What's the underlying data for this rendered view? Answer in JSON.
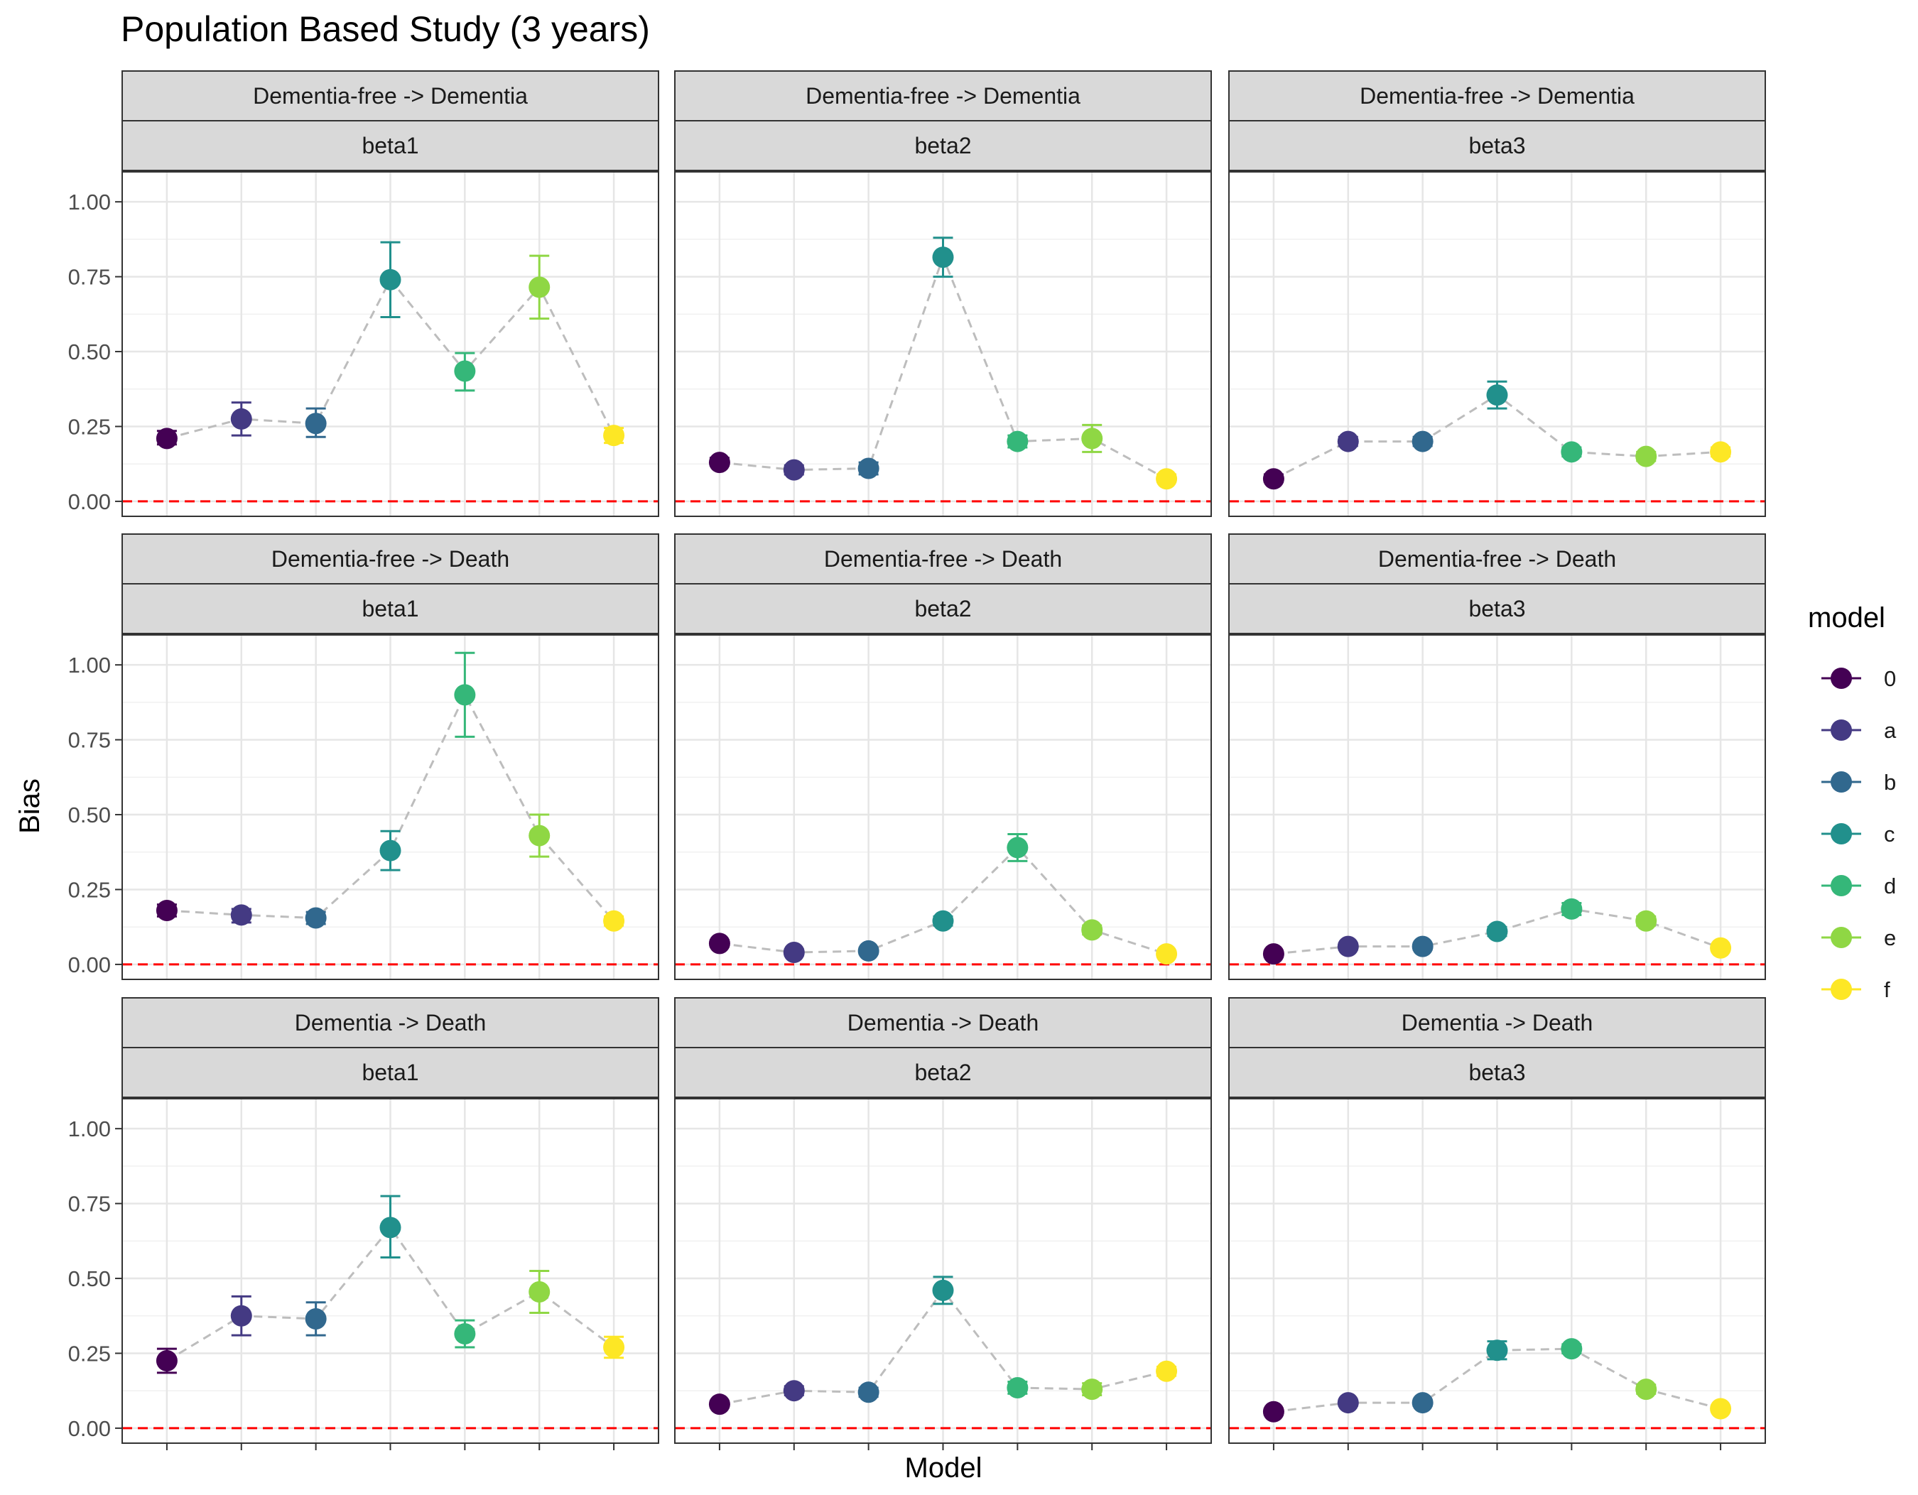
{
  "chart_data": {
    "type": "scatter",
    "title": "Population Based Study (3 years)",
    "xlabel": "Model",
    "ylabel": "Bias",
    "ylim": [
      -0.05,
      1.1
    ],
    "yticks": [
      0,
      0.25,
      0.5,
      0.75,
      1.0
    ],
    "ytick_labels": [
      "0.00",
      "0.25",
      "0.50",
      "0.75",
      "1.00"
    ],
    "categories": [
      "0",
      "a",
      "b",
      "c",
      "d",
      "e",
      "f"
    ],
    "reference_line": {
      "y": 0,
      "color": "#ff0000",
      "style": "dashed"
    },
    "connector": {
      "color": "#bdbdbd",
      "style": "dashed"
    },
    "grid": true,
    "legend": {
      "title": "model",
      "position": "right",
      "entries": [
        {
          "label": "0",
          "color": "#440154"
        },
        {
          "label": "a",
          "color": "#443a83"
        },
        {
          "label": "b",
          "color": "#31688e"
        },
        {
          "label": "c",
          "color": "#21908c"
        },
        {
          "label": "d",
          "color": "#35b779"
        },
        {
          "label": "e",
          "color": "#8fd744"
        },
        {
          "label": "f",
          "color": "#fde725"
        }
      ]
    },
    "panels": [
      {
        "transition": "Dementia-free -> Dementia",
        "parameter": "beta1",
        "values": [
          0.21,
          0.275,
          0.26,
          0.74,
          0.435,
          0.715,
          0.22
        ],
        "lower": [
          0.19,
          0.22,
          0.215,
          0.615,
          0.37,
          0.61,
          0.195
        ],
        "upper": [
          0.235,
          0.33,
          0.31,
          0.865,
          0.495,
          0.82,
          0.245
        ]
      },
      {
        "transition": "Dementia-free -> Dementia",
        "parameter": "beta2",
        "values": [
          0.13,
          0.105,
          0.11,
          0.815,
          0.2,
          0.21,
          0.075
        ],
        "lower": [
          0.12,
          0.09,
          0.09,
          0.75,
          0.18,
          0.165,
          0.065
        ],
        "upper": [
          0.145,
          0.12,
          0.13,
          0.88,
          0.22,
          0.255,
          0.09
        ]
      },
      {
        "transition": "Dementia-free -> Dementia",
        "parameter": "beta3",
        "values": [
          0.075,
          0.2,
          0.2,
          0.355,
          0.165,
          0.15,
          0.165
        ],
        "lower": [
          0.065,
          0.185,
          0.185,
          0.31,
          0.15,
          0.135,
          0.15
        ],
        "upper": [
          0.09,
          0.215,
          0.215,
          0.4,
          0.18,
          0.165,
          0.18
        ]
      },
      {
        "transition": "Dementia-free -> Death",
        "parameter": "beta1",
        "values": [
          0.18,
          0.165,
          0.155,
          0.38,
          0.9,
          0.43,
          0.145
        ],
        "lower": [
          0.16,
          0.14,
          0.135,
          0.315,
          0.76,
          0.36,
          0.13
        ],
        "upper": [
          0.2,
          0.185,
          0.175,
          0.445,
          1.04,
          0.5,
          0.16
        ]
      },
      {
        "transition": "Dementia-free -> Death",
        "parameter": "beta2",
        "values": [
          0.07,
          0.04,
          0.045,
          0.145,
          0.39,
          0.115,
          0.035
        ],
        "lower": [
          0.06,
          0.03,
          0.035,
          0.13,
          0.345,
          0.1,
          0.025
        ],
        "upper": [
          0.08,
          0.05,
          0.055,
          0.16,
          0.435,
          0.13,
          0.045
        ]
      },
      {
        "transition": "Dementia-free -> Death",
        "parameter": "beta3",
        "values": [
          0.035,
          0.06,
          0.06,
          0.11,
          0.185,
          0.145,
          0.055
        ],
        "lower": [
          0.025,
          0.05,
          0.05,
          0.095,
          0.165,
          0.13,
          0.045
        ],
        "upper": [
          0.045,
          0.07,
          0.07,
          0.125,
          0.205,
          0.16,
          0.065
        ]
      },
      {
        "transition": "Dementia -> Death",
        "parameter": "beta1",
        "values": [
          0.225,
          0.375,
          0.365,
          0.67,
          0.315,
          0.455,
          0.27
        ],
        "lower": [
          0.185,
          0.31,
          0.31,
          0.57,
          0.27,
          0.385,
          0.235
        ],
        "upper": [
          0.265,
          0.44,
          0.42,
          0.775,
          0.36,
          0.525,
          0.305
        ]
      },
      {
        "transition": "Dementia -> Death",
        "parameter": "beta2",
        "values": [
          0.08,
          0.125,
          0.12,
          0.46,
          0.135,
          0.13,
          0.19
        ],
        "lower": [
          0.07,
          0.11,
          0.105,
          0.415,
          0.115,
          0.11,
          0.175
        ],
        "upper": [
          0.09,
          0.14,
          0.135,
          0.505,
          0.155,
          0.15,
          0.205
        ]
      },
      {
        "transition": "Dementia -> Death",
        "parameter": "beta3",
        "values": [
          0.055,
          0.085,
          0.085,
          0.26,
          0.265,
          0.13,
          0.065
        ],
        "lower": [
          0.045,
          0.075,
          0.075,
          0.23,
          0.25,
          0.115,
          0.055
        ],
        "upper": [
          0.065,
          0.095,
          0.095,
          0.29,
          0.28,
          0.145,
          0.075
        ]
      }
    ]
  }
}
